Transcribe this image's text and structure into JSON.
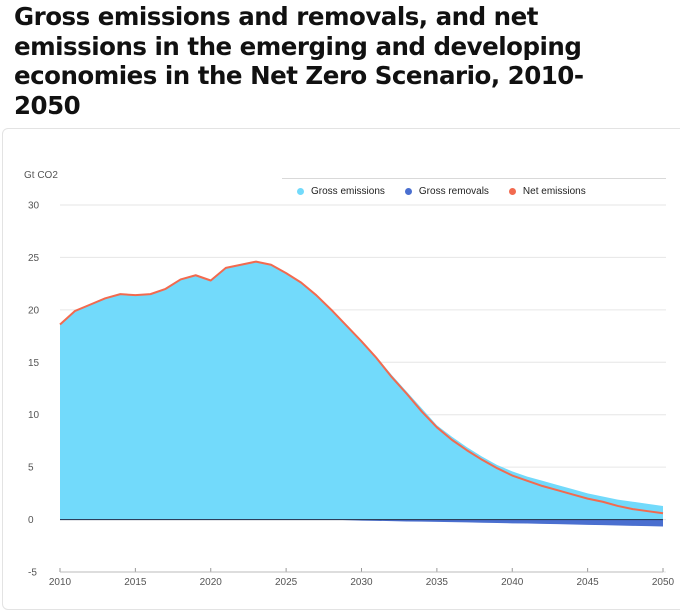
{
  "title": "Gross emissions and removals, and net emissions in the emerging and developing economies in the Net Zero Scenario, 2010-2050",
  "chart_data": {
    "type": "area",
    "ylabel": "Gt CO2",
    "ylim": [
      -5,
      30
    ],
    "yticks": [
      -5,
      0,
      5,
      10,
      15,
      20,
      25,
      30
    ],
    "xlim": [
      2010,
      2050
    ],
    "xticks": [
      2010,
      2015,
      2020,
      2025,
      2030,
      2035,
      2040,
      2045,
      2050
    ],
    "grid": true,
    "legend_position": "top",
    "x": [
      2010,
      2011,
      2012,
      2013,
      2014,
      2015,
      2016,
      2017,
      2018,
      2019,
      2020,
      2021,
      2022,
      2023,
      2024,
      2025,
      2026,
      2027,
      2028,
      2029,
      2030,
      2031,
      2032,
      2033,
      2034,
      2035,
      2036,
      2037,
      2038,
      2039,
      2040,
      2041,
      2042,
      2043,
      2044,
      2045,
      2046,
      2047,
      2048,
      2049,
      2050
    ],
    "series": [
      {
        "name": "Gross emissions",
        "color": "#72dafb",
        "values": [
          18.6,
          19.9,
          20.5,
          21.1,
          21.5,
          21.4,
          21.5,
          22.0,
          22.9,
          23.3,
          22.8,
          24.0,
          24.3,
          24.6,
          24.3,
          23.5,
          22.6,
          21.4,
          20.0,
          18.6,
          17.1,
          15.5,
          13.8,
          12.2,
          10.6,
          9.0,
          7.9,
          6.9,
          6.0,
          5.2,
          4.6,
          4.1,
          3.7,
          3.3,
          2.9,
          2.5,
          2.2,
          1.9,
          1.7,
          1.5,
          1.3
        ]
      },
      {
        "name": "Gross removals",
        "color": "#4a6fd0",
        "values": [
          0,
          0,
          0,
          0,
          0,
          0,
          0,
          0,
          0,
          0,
          0,
          0,
          0,
          0,
          0,
          0,
          0,
          0,
          0,
          -0.05,
          -0.1,
          -0.12,
          -0.15,
          -0.18,
          -0.2,
          -0.22,
          -0.24,
          -0.27,
          -0.3,
          -0.33,
          -0.36,
          -0.38,
          -0.41,
          -0.44,
          -0.47,
          -0.5,
          -0.53,
          -0.56,
          -0.6,
          -0.63,
          -0.66
        ]
      },
      {
        "name": "Net emissions",
        "color": "#f26a4f",
        "values": [
          18.6,
          19.9,
          20.5,
          21.1,
          21.5,
          21.4,
          21.5,
          22.0,
          22.9,
          23.3,
          22.8,
          24.0,
          24.3,
          24.6,
          24.3,
          23.5,
          22.6,
          21.4,
          20.0,
          18.5,
          17.0,
          15.4,
          13.6,
          12.0,
          10.3,
          8.8,
          7.6,
          6.6,
          5.7,
          4.9,
          4.2,
          3.7,
          3.2,
          2.8,
          2.4,
          2.0,
          1.7,
          1.3,
          1.0,
          0.8,
          0.6
        ]
      }
    ]
  }
}
